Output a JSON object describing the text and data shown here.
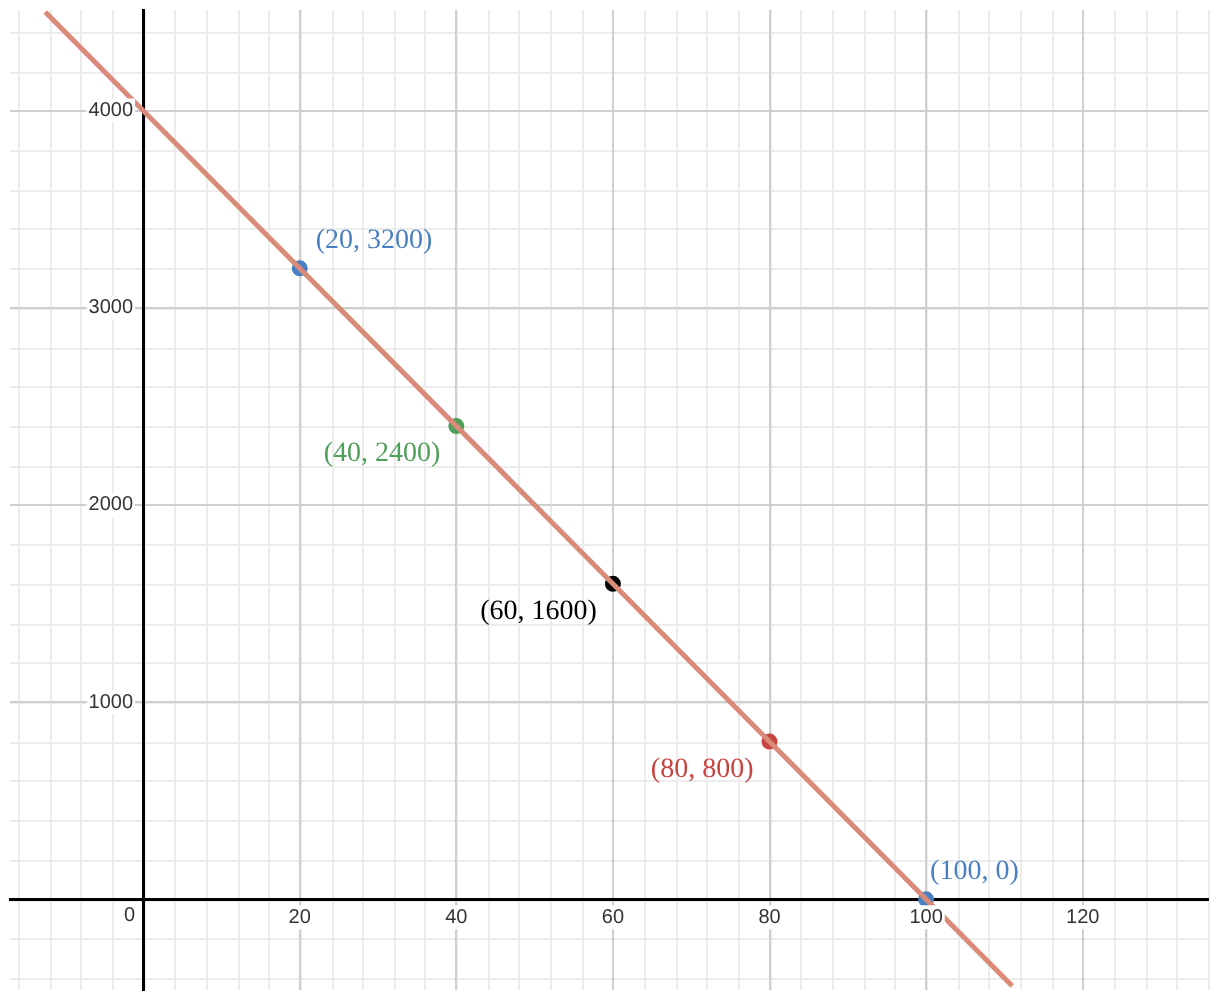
{
  "chart_data": {
    "type": "line",
    "grid": true,
    "legend": false,
    "marker": "none",
    "line_style": "solid",
    "xlim": [
      -17,
      136
    ],
    "ylim": [
      -460,
      4510
    ],
    "xticks": [
      0,
      20,
      40,
      60,
      80,
      100,
      120
    ],
    "yticks": [
      {
        "value": 0,
        "label": null
      },
      1000,
      2000,
      3000,
      4000
    ],
    "series": [
      {
        "color": "#d98a78",
        "x": [
          -12.5,
          111
        ],
        "values": [
          4500,
          -440
        ]
      },
      {
        "type": "scatter",
        "marker": "circle",
        "x": [
          20,
          40,
          60,
          80,
          100
        ],
        "values": [
          3200,
          2400,
          1600,
          800,
          0
        ],
        "colors": [
          "#4a7fc1",
          "#4ea05a",
          "#000000",
          "#c74440",
          "#4a7fc1"
        ]
      }
    ],
    "annotations": [
      {
        "text": "(20, 3200)",
        "x": 20,
        "y": 3200
      },
      {
        "text": "(40, 2400)",
        "x": 40,
        "y": 2400
      },
      {
        "text": "(60, 1600)",
        "x": 60,
        "y": 1600
      },
      {
        "text": "(80, 800)",
        "x": 80,
        "y": 800
      },
      {
        "text": "(100, 0)",
        "x": 100,
        "y": 0
      }
    ]
  }
}
